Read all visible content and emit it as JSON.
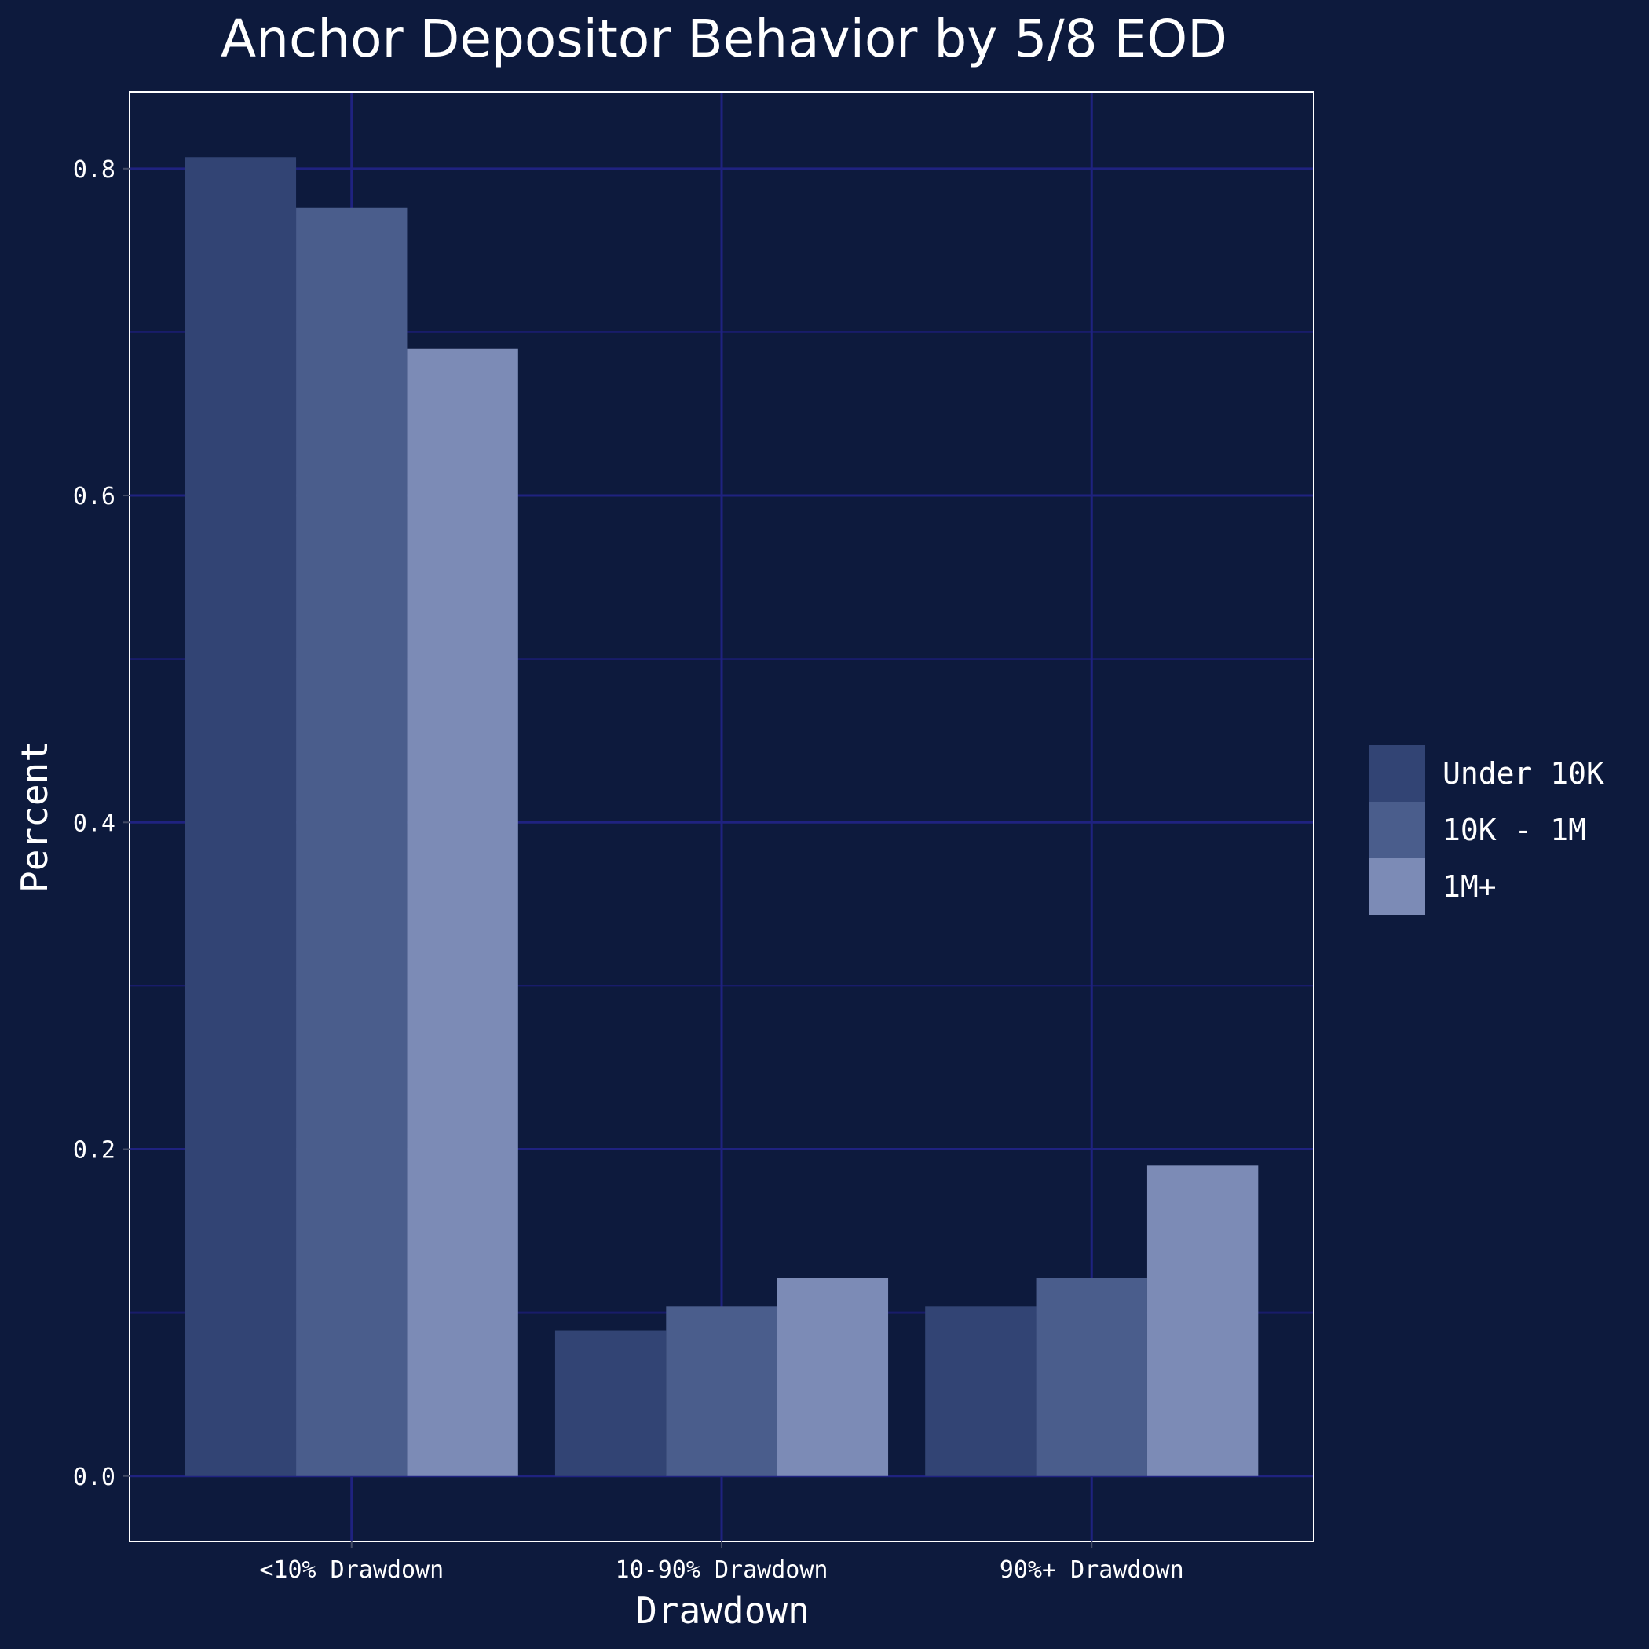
{
  "colors": {
    "background": "#0d1a3d",
    "grid_major": "#1f2280",
    "grid_minor": "#181c6a",
    "panel_border": "#ffffff",
    "text": "#ffffff"
  },
  "chart_data": {
    "type": "bar",
    "title": "Anchor Depositor Behavior by 5/8 EOD",
    "xlabel": "Drawdown",
    "ylabel": "Percent",
    "categories": [
      "<10% Drawdown",
      "10-90% Drawdown",
      "90%+ Drawdown"
    ],
    "series": [
      {
        "name": "Under 10K",
        "color": "#324474",
        "values": [
          0.807,
          0.089,
          0.104
        ]
      },
      {
        "name": "10K - 1M",
        "color": "#4a5d8c",
        "values": [
          0.776,
          0.104,
          0.121
        ]
      },
      {
        "name": "1M+",
        "color": "#7c8bb6",
        "values": [
          0.69,
          0.121,
          0.19
        ]
      }
    ],
    "ylim": [
      -0.04,
      0.847
    ],
    "yticks": [
      0.0,
      0.2,
      0.4,
      0.6,
      0.8
    ],
    "ytick_labels": [
      "0.0",
      "0.2",
      "0.4",
      "0.6",
      "0.8"
    ],
    "yminor": [
      0.1,
      0.3,
      0.5,
      0.7
    ],
    "grid": true,
    "legend_position": "right"
  }
}
